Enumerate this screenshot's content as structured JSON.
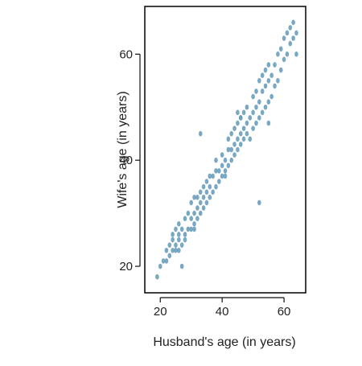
{
  "chart_data": {
    "type": "scatter",
    "title": "",
    "xlabel": "Husband's age (in years)",
    "ylabel": "Wife's age (in years)",
    "xlim": [
      15,
      67
    ],
    "ylim": [
      15,
      69
    ],
    "xticks": [
      20,
      40,
      60
    ],
    "yticks": [
      20,
      40,
      60
    ],
    "grid": false,
    "point_color": "#6a9fbd",
    "series": [
      {
        "x": [
          19,
          20,
          21,
          22,
          22,
          23,
          23,
          24,
          24,
          24,
          25,
          25,
          25,
          26,
          26,
          26,
          27,
          27,
          28,
          28,
          28,
          29,
          29,
          30,
          30,
          30,
          31,
          31,
          31,
          32,
          32,
          32,
          33,
          33,
          33,
          34,
          34,
          34,
          35,
          35,
          35,
          36,
          36,
          36,
          37,
          37,
          38,
          38,
          38,
          39,
          39,
          40,
          40,
          40,
          41,
          41,
          42,
          42,
          42,
          43,
          43,
          43,
          44,
          44,
          44,
          45,
          45,
          45,
          45,
          46,
          46,
          46,
          47,
          47,
          47,
          48,
          48,
          48,
          49,
          49,
          50,
          50,
          50,
          51,
          51,
          51,
          52,
          52,
          52,
          53,
          53,
          53,
          54,
          54,
          54,
          55,
          55,
          55,
          56,
          56,
          57,
          57,
          58,
          58,
          59,
          59,
          60,
          60,
          61,
          61,
          62,
          62,
          63,
          63,
          64,
          64,
          33,
          52,
          46,
          41,
          26,
          31,
          27,
          55
        ],
        "y": [
          18,
          20,
          21,
          21,
          23,
          22,
          24,
          23,
          25,
          26,
          23,
          27,
          24,
          25,
          26,
          28,
          24,
          27,
          25,
          26,
          29,
          27,
          30,
          27,
          29,
          32,
          28,
          30,
          33,
          29,
          31,
          33,
          30,
          32,
          34,
          31,
          33,
          35,
          32,
          34,
          36,
          33,
          35,
          37,
          34,
          37,
          35,
          38,
          40,
          36,
          38,
          37,
          39,
          41,
          38,
          40,
          39,
          42,
          44,
          40,
          42,
          45,
          41,
          43,
          46,
          42,
          44,
          47,
          49,
          43,
          45,
          48,
          44,
          46,
          49,
          45,
          47,
          50,
          44,
          48,
          46,
          49,
          52,
          47,
          50,
          53,
          48,
          51,
          55,
          49,
          53,
          56,
          50,
          54,
          57,
          51,
          55,
          58,
          52,
          56,
          54,
          58,
          55,
          60,
          57,
          61,
          59,
          63,
          60,
          64,
          62,
          65,
          63,
          66,
          64,
          60,
          45,
          32,
          48,
          37,
          23,
          27,
          20,
          47
        ]
      }
    ]
  }
}
